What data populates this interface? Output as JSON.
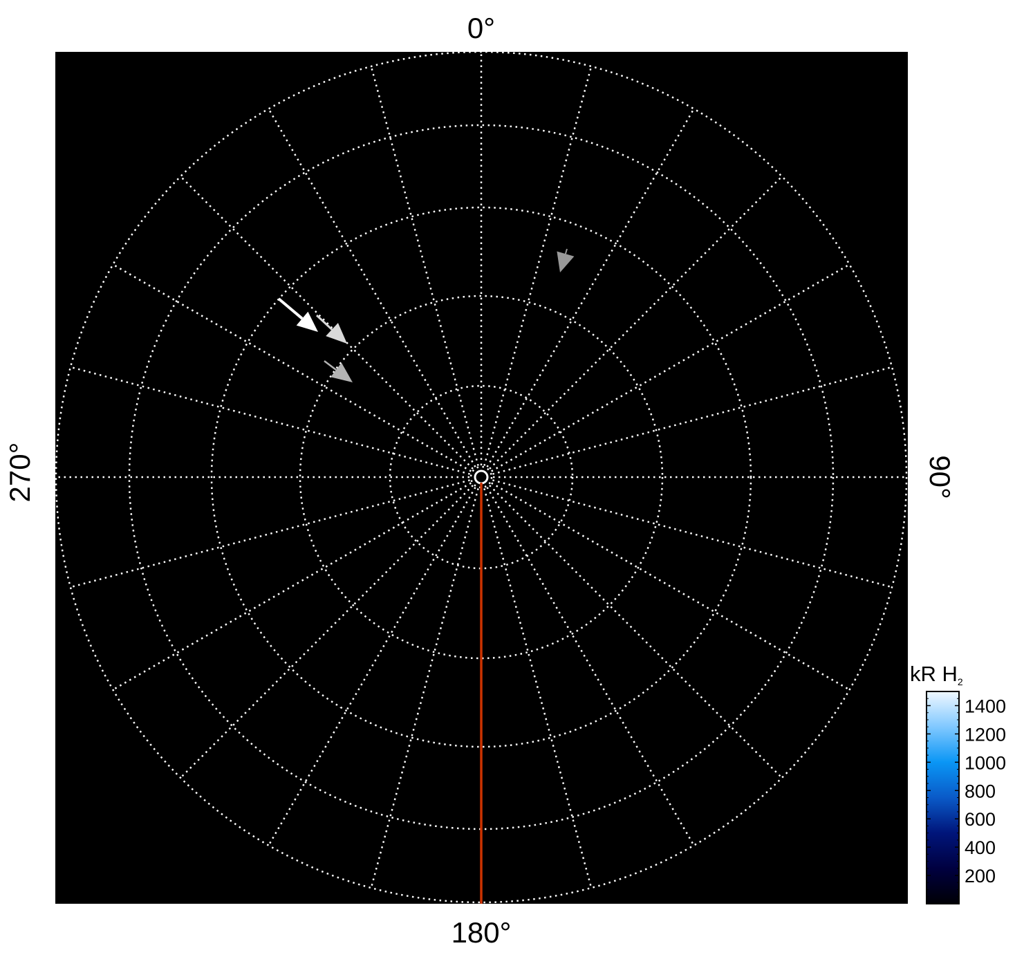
{
  "chart_data": {
    "type": "polar",
    "angle_labels": [
      {
        "angle": 0,
        "label": "0°"
      },
      {
        "angle": 90,
        "label": "90°"
      },
      {
        "angle": 180,
        "label": "180°"
      },
      {
        "angle": 270,
        "label": "270°"
      }
    ],
    "grid": true,
    "radial_spoke_step_deg": 15,
    "ring_count": 5,
    "background_color": "#000000",
    "grid_color": "#ffffff",
    "reference_line": {
      "angle": 180,
      "color": "#cc3300"
    },
    "arrows": [
      {
        "color": "#ffffff",
        "direction": "south-east"
      },
      {
        "color": "#d9d9d9",
        "direction": "south-east"
      },
      {
        "color": "#b3b3b3",
        "direction": "south-east"
      },
      {
        "color": "#999999",
        "direction": "south"
      }
    ],
    "colorbar": {
      "title": "kR H",
      "title_subscript": "2",
      "range": [
        0,
        1500
      ],
      "ticks": [
        200,
        400,
        600,
        800,
        1000,
        1200,
        1400
      ],
      "tick_labels": [
        "200",
        "400",
        "600",
        "800",
        "1000",
        "1200",
        "1400"
      ],
      "colormap": [
        "#000005",
        "#000040",
        "#00157a",
        "#0a5ac8",
        "#0a96f5",
        "#80c8ff",
        "#f0f8ff"
      ],
      "placement": "right"
    }
  }
}
